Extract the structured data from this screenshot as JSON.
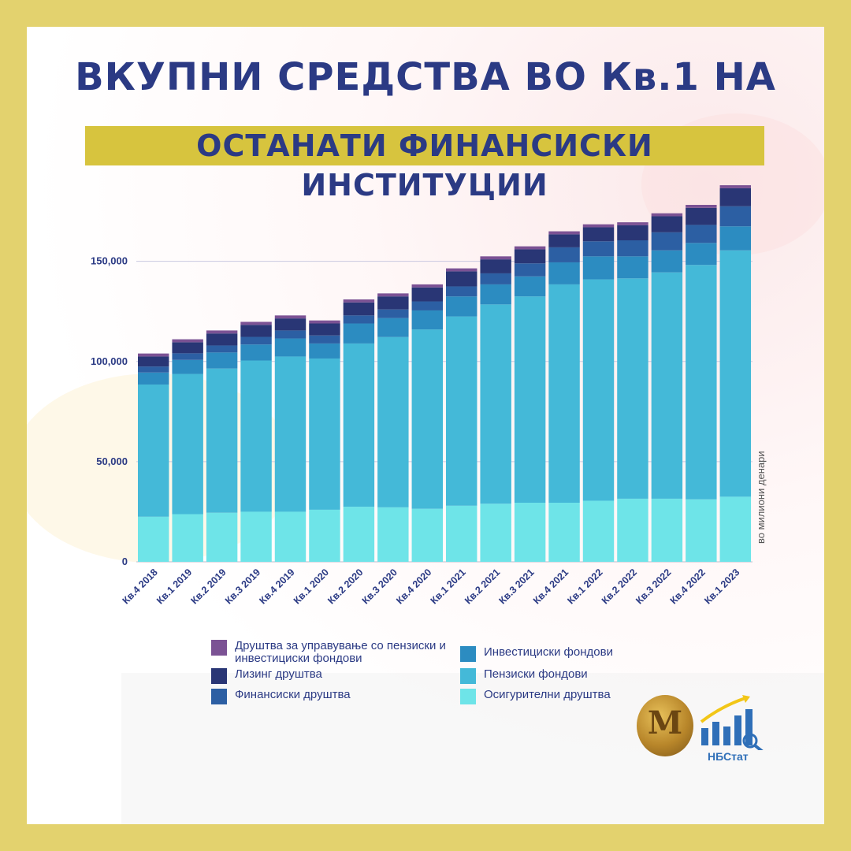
{
  "title_line1": "ВКУПНИ СРЕДСТВА ВО Кв.1 НА",
  "title_line2": "ОСТАНАТИ ФИНАНСИСКИ ИНСТИТУЦИИ",
  "unit_label": "во милиони денари",
  "logo_text": "НБСтат",
  "coin_letter": "M",
  "colors": {
    "border": "#e3d26e",
    "title": "#2b3a84",
    "title_band": "#d7c43e"
  },
  "chart_data": {
    "type": "bar",
    "stacked": true,
    "categories": [
      "Кв.4 2018",
      "Кв.1 2019",
      "Кв.2 2019",
      "Кв.3 2019",
      "Кв.4 2019",
      "Кв.1 2020",
      "Кв.2 2020",
      "Кв.3 2020",
      "Кв.4 2020",
      "Кв.1 2021",
      "Кв.2 2021",
      "Кв.3 2021",
      "Кв.4 2021",
      "Кв.1 2022",
      "Кв.2 2022",
      "Кв.3 2022",
      "Кв.4 2022",
      "Кв.1 2023"
    ],
    "yticks": [
      "0",
      "50,000",
      "100,000",
      "150,000"
    ],
    "ylim": [
      0,
      190000
    ],
    "grid": true,
    "legend_position": "bottom",
    "series": [
      {
        "name": "Осигурителни друштва",
        "color": "#6ee4e8",
        "values": [
          22500,
          23800,
          24500,
          25000,
          25000,
          26000,
          27500,
          27200,
          26500,
          28000,
          29000,
          29500,
          29500,
          30500,
          31500,
          31500,
          31200,
          32500
        ]
      },
      {
        "name": "Пензиски фондови",
        "color": "#44b9d8",
        "values": [
          66000,
          70000,
          72000,
          75500,
          77500,
          75500,
          81500,
          85000,
          89500,
          94500,
          99500,
          103000,
          109000,
          110500,
          110000,
          113000,
          117000,
          123000
        ]
      },
      {
        "name": "Инвестициски фондови",
        "color": "#2c8cc1",
        "values": [
          6000,
          7000,
          8000,
          8000,
          9000,
          7500,
          10000,
          9500,
          9500,
          10000,
          10000,
          10000,
          11000,
          11500,
          11000,
          11000,
          11000,
          12000
        ]
      },
      {
        "name": "Финансиски друштва",
        "color": "#2c5fa3",
        "values": [
          3000,
          3300,
          3500,
          3800,
          4000,
          4000,
          4000,
          4300,
          4500,
          5000,
          5500,
          6500,
          7500,
          7500,
          8000,
          9000,
          9000,
          10000
        ]
      },
      {
        "name": "Лизинг друштва",
        "color": "#293675",
        "values": [
          5000,
          5500,
          6000,
          6000,
          6000,
          6000,
          6500,
          6500,
          7000,
          7500,
          7000,
          7000,
          6500,
          7000,
          7500,
          8000,
          8500,
          9000
        ]
      },
      {
        "name": "Друштва за управување со пензиски и инвестициски фондови",
        "color": "#7b5294",
        "values": [
          1500,
          1500,
          1500,
          1500,
          1500,
          1500,
          1500,
          1500,
          1500,
          1500,
          1500,
          1500,
          1500,
          1500,
          1500,
          1500,
          1500,
          1500
        ]
      }
    ]
  },
  "legend_left": [
    {
      "label": "Друштва за управување со пензиски и инвестициски фондови",
      "color": "#7b5294"
    },
    {
      "label": "Лизинг друштва",
      "color": "#293675"
    },
    {
      "label": "Финансиски друштва",
      "color": "#2c5fa3"
    }
  ],
  "legend_right": [
    {
      "label": "Инвестициски фондови",
      "color": "#2c8cc1"
    },
    {
      "label": "Пензиски фондови",
      "color": "#44b9d8"
    },
    {
      "label": "Осигурителни друштва",
      "color": "#6ee4e8"
    }
  ]
}
